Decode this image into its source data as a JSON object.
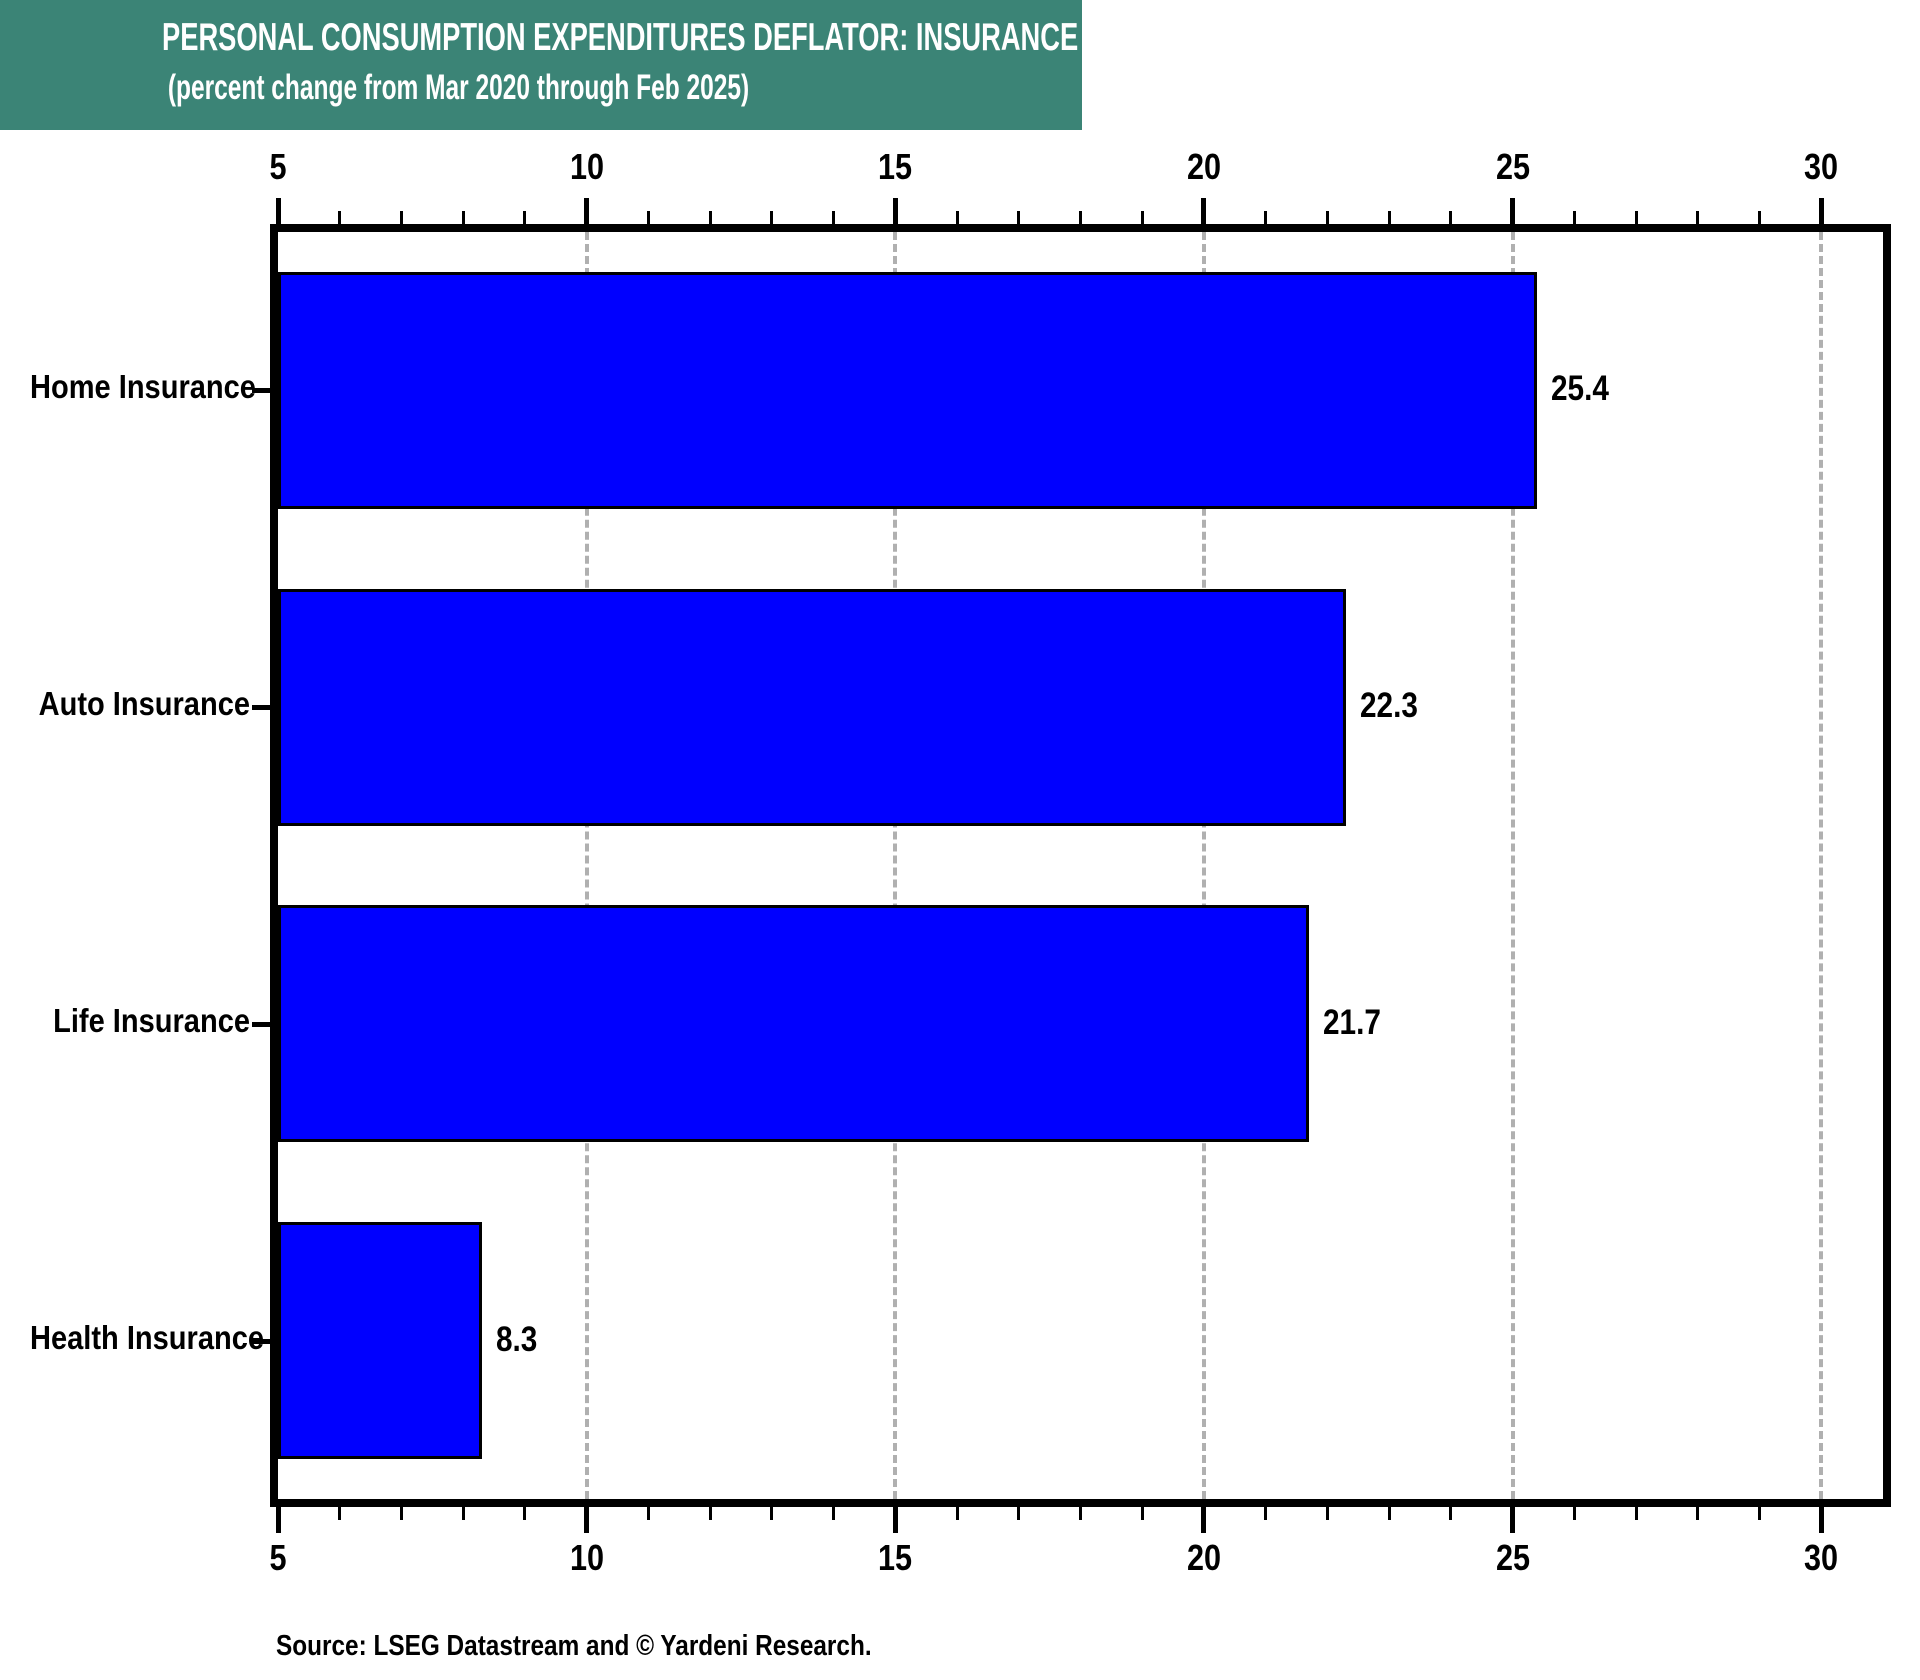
{
  "chart_data": {
    "type": "bar",
    "orientation": "horizontal",
    "title": "PERSONAL CONSUMPTION EXPENDITURES DEFLATOR: INSURANCE",
    "subtitle": "(percent change from Mar 2020 through Feb 2025)",
    "categories": [
      "Home Insurance",
      "Auto Insurance",
      "Life Insurance",
      "Health Insurance"
    ],
    "values": [
      25.4,
      22.3,
      21.7,
      8.3
    ],
    "value_labels": [
      "25.4",
      "22.3",
      "21.7",
      "8.3"
    ],
    "xlim": [
      5,
      31
    ],
    "x_major_ticks": [
      5,
      10,
      15,
      20,
      25,
      30
    ],
    "x_minor_tick_step": 1,
    "grid": {
      "vertical_dashed_at": [
        10,
        15,
        20,
        25,
        30
      ],
      "color": "#b0b0b0"
    },
    "legend": "none",
    "bar_color": "#0000ff",
    "bar_border_color": "#000000",
    "banner_color": "#3b8476",
    "source": "Source: LSEG Datastream and © Yardeni Research."
  }
}
